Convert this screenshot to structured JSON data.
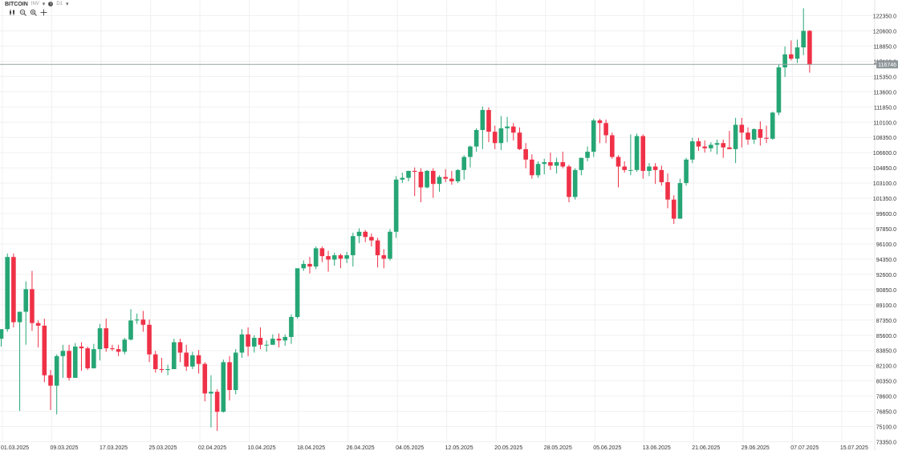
{
  "header": {
    "symbol": "BITCOIN",
    "suffix": "INV",
    "timeframe": "D1"
  },
  "tools": [
    {
      "name": "bar-style-icon"
    },
    {
      "name": "zoom-out-icon"
    },
    {
      "name": "zoom-in-icon"
    },
    {
      "name": "crosshair-icon"
    }
  ],
  "colors": {
    "up": "#26a675",
    "down": "#ef3147",
    "grid": "#f0f0f0",
    "axis_text": "#333333",
    "price_line": "#9aa3a6",
    "price_label_bg": "#8f969a"
  },
  "chart_data": {
    "type": "candlestick",
    "y_ticks": [
      "122350.0",
      "120600.0",
      "118850.0",
      "117100.0",
      "115350.0",
      "113600.0",
      "111850.0",
      "110100.0",
      "108350.0",
      "106600.0",
      "104850.0",
      "103100.0",
      "101350.0",
      "99600.0",
      "97850.0",
      "96100.0",
      "94350.0",
      "92600.0",
      "90850.0",
      "89100.0",
      "87350.0",
      "85600.0",
      "83850.0",
      "82100.0",
      "80350.0",
      "78600.0",
      "76850.0",
      "75100.0",
      "73350.0"
    ],
    "ylim": [
      73350,
      122350
    ],
    "x_ticks": [
      "01.03.2025",
      "09.03.2025",
      "17.03.2025",
      "25.03.2025",
      "02.04.2025",
      "10.04.2025",
      "18.04.2025",
      "26.04.2025",
      "04.05.2025",
      "12.05.2025",
      "20.05.2025",
      "28.05.2025",
      "05.06.2025",
      "13.06.2025",
      "21.06.2025",
      "29.06.2025",
      "07.07.2025",
      "15.07.2025"
    ],
    "current_price": 116746,
    "current_price_label": "116746",
    "ohlc": [
      [
        85200,
        86000,
        84300,
        86300
      ],
      [
        86300,
        95000,
        86000,
        94600
      ],
      [
        94600,
        95000,
        86500,
        87100
      ],
      [
        87100,
        88300,
        76900,
        88300
      ],
      [
        88300,
        91800,
        84500,
        90900
      ],
      [
        90900,
        93000,
        86100,
        87000
      ],
      [
        87000,
        87300,
        84200,
        86700
      ],
      [
        86700,
        87500,
        80200,
        81000
      ],
      [
        81000,
        81600,
        77000,
        79800
      ],
      [
        79800,
        83400,
        76500,
        83200
      ],
      [
        83200,
        84500,
        80700,
        83800
      ],
      [
        83800,
        84500,
        80400,
        80700
      ],
      [
        80700,
        84700,
        80700,
        84300
      ],
      [
        84300,
        84800,
        81500,
        84100
      ],
      [
        84100,
        84300,
        81600,
        81800
      ],
      [
        81800,
        84600,
        81800,
        84000
      ],
      [
        84000,
        86900,
        82700,
        86400
      ],
      [
        86400,
        87500,
        83700,
        84100
      ],
      [
        84100,
        84500,
        83800,
        84000
      ],
      [
        84000,
        84500,
        83200,
        83700
      ],
      [
        83700,
        85300,
        83400,
        85100
      ],
      [
        85100,
        88600,
        85000,
        87300
      ],
      [
        87300,
        88100,
        86900,
        87400
      ],
      [
        87400,
        88400,
        86000,
        86800
      ],
      [
        86800,
        87400,
        82500,
        83400
      ],
      [
        83400,
        83800,
        81300,
        81700
      ],
      [
        81700,
        83000,
        81300,
        81600
      ],
      [
        81600,
        82200,
        81000,
        81700
      ],
      [
        81700,
        85200,
        81700,
        84800
      ],
      [
        84800,
        85200,
        82500,
        83600
      ],
      [
        83600,
        84500,
        81500,
        82000
      ],
      [
        82000,
        83700,
        81700,
        83300
      ],
      [
        83300,
        83900,
        81200,
        82300
      ],
      [
        82300,
        82500,
        78000,
        78900
      ],
      [
        78900,
        81000,
        75000,
        79100
      ],
      [
        79100,
        79400,
        74600,
        76800
      ],
      [
        76800,
        82800,
        76700,
        82500
      ],
      [
        82500,
        83200,
        78100,
        79300
      ],
      [
        79300,
        84000,
        78800,
        83600
      ],
      [
        83600,
        86300,
        83000,
        85700
      ],
      [
        85700,
        86500,
        83200,
        84300
      ],
      [
        84300,
        85600,
        83600,
        85300
      ],
      [
        85300,
        86500,
        84000,
        84500
      ],
      [
        84500,
        85000,
        83700,
        84500
      ],
      [
        84500,
        85700,
        84500,
        85200
      ],
      [
        85200,
        85800,
        84200,
        85000
      ],
      [
        85000,
        85700,
        84400,
        85400
      ],
      [
        85400,
        88000,
        84600,
        87700
      ],
      [
        87700,
        93000,
        87500,
        93300
      ],
      [
        93300,
        94200,
        93000,
        93800
      ],
      [
        93800,
        94600,
        92700,
        93500
      ],
      [
        93500,
        95800,
        93200,
        95600
      ],
      [
        95600,
        95800,
        94000,
        94700
      ],
      [
        94700,
        95300,
        92900,
        94300
      ],
      [
        94300,
        95100,
        93600,
        94800
      ],
      [
        94800,
        95000,
        93300,
        94400
      ],
      [
        94400,
        95200,
        93900,
        94800
      ],
      [
        94800,
        97400,
        93500,
        97000
      ],
      [
        97000,
        97900,
        96200,
        97500
      ],
      [
        97500,
        97700,
        96300,
        96900
      ],
      [
        96900,
        97300,
        95800,
        96500
      ],
      [
        96500,
        96800,
        93400,
        94800
      ],
      [
        94800,
        95500,
        93300,
        94400
      ],
      [
        94400,
        97800,
        94200,
        97500
      ],
      [
        97500,
        103900,
        96800,
        103500
      ],
      [
        103500,
        104300,
        103100,
        103700
      ],
      [
        103700,
        104500,
        103300,
        104500
      ],
      [
        104500,
        104900,
        101600,
        104400
      ],
      [
        104400,
        104800,
        100900,
        102600
      ],
      [
        102600,
        104600,
        102500,
        104500
      ],
      [
        104500,
        104800,
        101400,
        103000
      ],
      [
        103000,
        104000,
        102100,
        103800
      ],
      [
        103800,
        104700,
        103200,
        103600
      ],
      [
        103600,
        104500,
        102900,
        103300
      ],
      [
        103300,
        104700,
        103100,
        104600
      ],
      [
        104600,
        106300,
        103500,
        106100
      ],
      [
        106100,
        107400,
        104900,
        107300
      ],
      [
        107300,
        109400,
        106700,
        109200
      ],
      [
        109200,
        111900,
        107000,
        111500
      ],
      [
        111500,
        111800,
        107800,
        109000
      ],
      [
        109000,
        109700,
        107000,
        107700
      ],
      [
        107700,
        110800,
        106900,
        109400
      ],
      [
        109400,
        110700,
        107800,
        109600
      ],
      [
        109600,
        110000,
        108000,
        108900
      ],
      [
        108900,
        109500,
        106900,
        107000
      ],
      [
        107000,
        107700,
        104800,
        105800
      ],
      [
        105800,
        106400,
        103600,
        104000
      ],
      [
        104000,
        105600,
        103700,
        105300
      ],
      [
        105300,
        105900,
        104100,
        105500
      ],
      [
        105500,
        106600,
        104600,
        105100
      ],
      [
        105100,
        106000,
        104200,
        105500
      ],
      [
        105500,
        106700,
        104800,
        105000
      ],
      [
        105000,
        105200,
        100900,
        101500
      ],
      [
        101500,
        104800,
        101200,
        104600
      ],
      [
        104600,
        106000,
        104000,
        106000
      ],
      [
        106000,
        107300,
        105600,
        106700
      ],
      [
        106700,
        110500,
        106100,
        110300
      ],
      [
        110300,
        110500,
        107700,
        110000
      ],
      [
        110000,
        110400,
        107700,
        108600
      ],
      [
        108600,
        108900,
        105900,
        106100
      ],
      [
        106100,
        106300,
        102600,
        105000
      ],
      [
        105000,
        105600,
        104300,
        104600
      ],
      [
        104600,
        108700,
        104000,
        104600
      ],
      [
        104600,
        108800,
        104400,
        108500
      ],
      [
        108500,
        108700,
        103600,
        104500
      ],
      [
        104500,
        105400,
        103900,
        105000
      ],
      [
        105000,
        105400,
        103000,
        104600
      ],
      [
        104600,
        105100,
        102800,
        103200
      ],
      [
        103200,
        104200,
        100200,
        101200
      ],
      [
        101200,
        101700,
        98400,
        99000
      ],
      [
        99000,
        103600,
        99000,
        103100
      ],
      [
        103100,
        106000,
        102800,
        105800
      ],
      [
        105800,
        108300,
        105400,
        107900
      ],
      [
        107900,
        108300,
        106800,
        107300
      ],
      [
        107300,
        108000,
        106600,
        107100
      ],
      [
        107100,
        107800,
        106700,
        107500
      ],
      [
        107500,
        108100,
        106400,
        107700
      ],
      [
        107700,
        108100,
        106000,
        107200
      ],
      [
        107200,
        109100,
        107000,
        107000
      ],
      [
        107000,
        110600,
        105400,
        109800
      ],
      [
        109800,
        110600,
        107200,
        108900
      ],
      [
        108900,
        109500,
        107500,
        108100
      ],
      [
        108100,
        109400,
        107600,
        109300
      ],
      [
        109300,
        110200,
        107400,
        108300
      ],
      [
        108300,
        109700,
        107700,
        108200
      ],
      [
        108200,
        111300,
        108100,
        111200
      ],
      [
        111200,
        116800,
        110900,
        116400
      ],
      [
        116400,
        118800,
        115300,
        117900
      ],
      [
        117900,
        119500,
        117200,
        117400
      ],
      [
        117400,
        119600,
        116900,
        118700
      ],
      [
        118700,
        123200,
        117800,
        120600
      ],
      [
        120600,
        120700,
        115800,
        116700
      ]
    ]
  }
}
